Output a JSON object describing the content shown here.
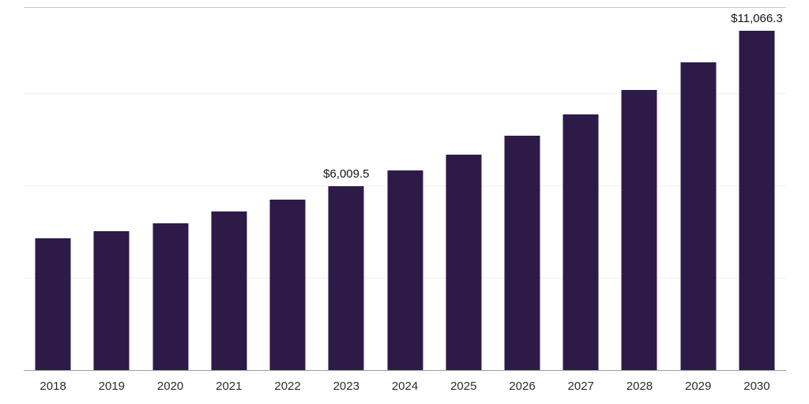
{
  "chart_data": {
    "type": "bar",
    "title": "",
    "xlabel": "",
    "ylabel": "",
    "categories": [
      "2018",
      "2019",
      "2020",
      "2021",
      "2022",
      "2023",
      "2024",
      "2025",
      "2026",
      "2027",
      "2028",
      "2029",
      "2030"
    ],
    "values": [
      4300,
      4530,
      4810,
      5190,
      5560,
      6009.5,
      6520,
      7040,
      7650,
      8350,
      9140,
      10030,
      11066.3
    ],
    "annotations": [
      {
        "category": "2023",
        "label": "$6,009.5"
      },
      {
        "category": "2030",
        "label": "$11,066.3"
      }
    ],
    "ylim": [
      0,
      11800
    ],
    "gridline_values": [
      3000,
      6000,
      9000,
      11800
    ],
    "grid": "horizontal",
    "legend": "none",
    "bar_color": "#2e1a47",
    "background_color": "#ffffff",
    "axis_line_color": "#9e9e9e",
    "gridline_color": "#efefef",
    "top_line_color": "#c9c9c9",
    "tick_label_color": "#2b2b2b",
    "annotation_color": "#141414"
  }
}
